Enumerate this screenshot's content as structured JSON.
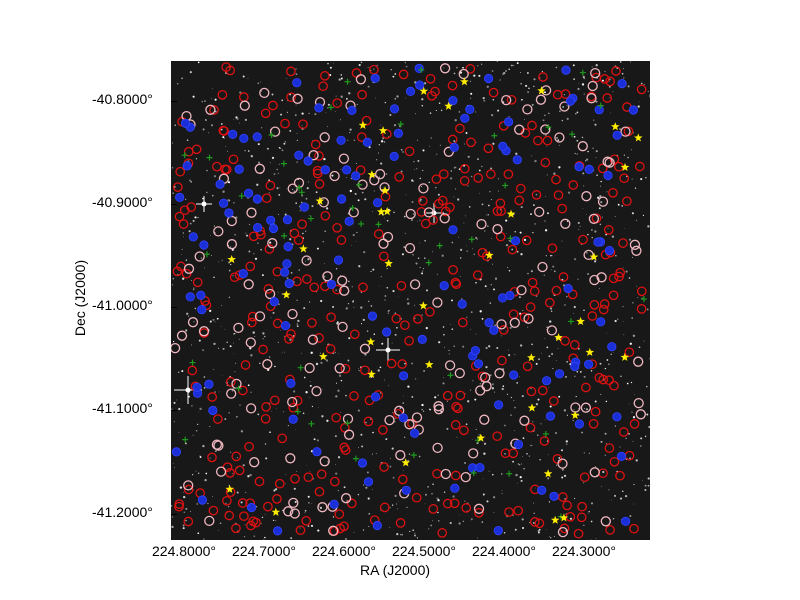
{
  "figure": {
    "x_axis_title": "RA (J2000)",
    "y_axis_title": "Dec (J2000)",
    "y_ticks": [
      "-40.8000°",
      "-40.9000°",
      "-41.0000°",
      "-41.1000°",
      "-41.2000°"
    ],
    "x_ticks": [
      "224.8000°",
      "224.7000°",
      "224.6000°",
      "224.5000°",
      "224.4000°",
      "224.3000°"
    ]
  },
  "legend_colors": {
    "red_circle": "#dd1111",
    "pink_circle": "#f0b8c0",
    "blue_marker": "#1a2fd8",
    "green_cross": "#1f9a1f",
    "yellow_star": "#ffee00"
  }
}
